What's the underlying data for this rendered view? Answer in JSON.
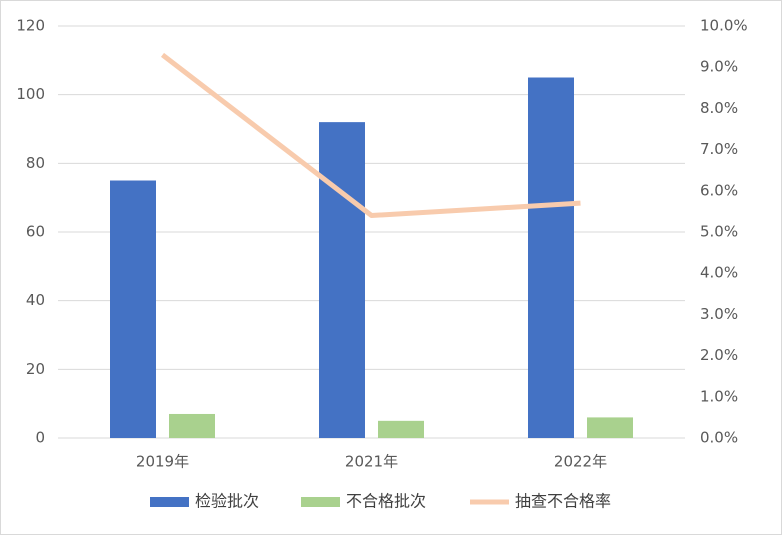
{
  "chart_data": {
    "type": "bar",
    "categories": [
      "2019年",
      "2021年",
      "2022年"
    ],
    "series": [
      {
        "name": "检验批次",
        "color": "#4472c4",
        "values": [
          75,
          92,
          105
        ]
      },
      {
        "name": "不合格批次",
        "color": "#a9d18e",
        "values": [
          7,
          5,
          6
        ]
      },
      {
        "name": "抽查不合格率",
        "color": "#f8cbad",
        "type": "line",
        "axis": "y2",
        "values": [
          9.3,
          5.4,
          5.7
        ]
      }
    ],
    "ylim": [
      0,
      120
    ],
    "yticks": [
      0,
      20,
      40,
      60,
      80,
      100,
      120
    ],
    "y2lim": [
      0,
      10
    ],
    "y2ticks": [
      {
        "value": 0,
        "label": "0.0%"
      },
      {
        "value": 1,
        "label": "1.0%"
      },
      {
        "value": 2,
        "label": "2.0%"
      },
      {
        "value": 3,
        "label": "3.0%"
      },
      {
        "value": 4,
        "label": "4.0%"
      },
      {
        "value": 5,
        "label": "5.0%"
      },
      {
        "value": 6,
        "label": "6.0%"
      },
      {
        "value": 7,
        "label": "7.0%"
      },
      {
        "value": 8,
        "label": "8.0%"
      },
      {
        "value": 9,
        "label": "9.0%"
      },
      {
        "value": 10,
        "label": "10.0%"
      }
    ],
    "grid": true,
    "legend": "bottom"
  }
}
